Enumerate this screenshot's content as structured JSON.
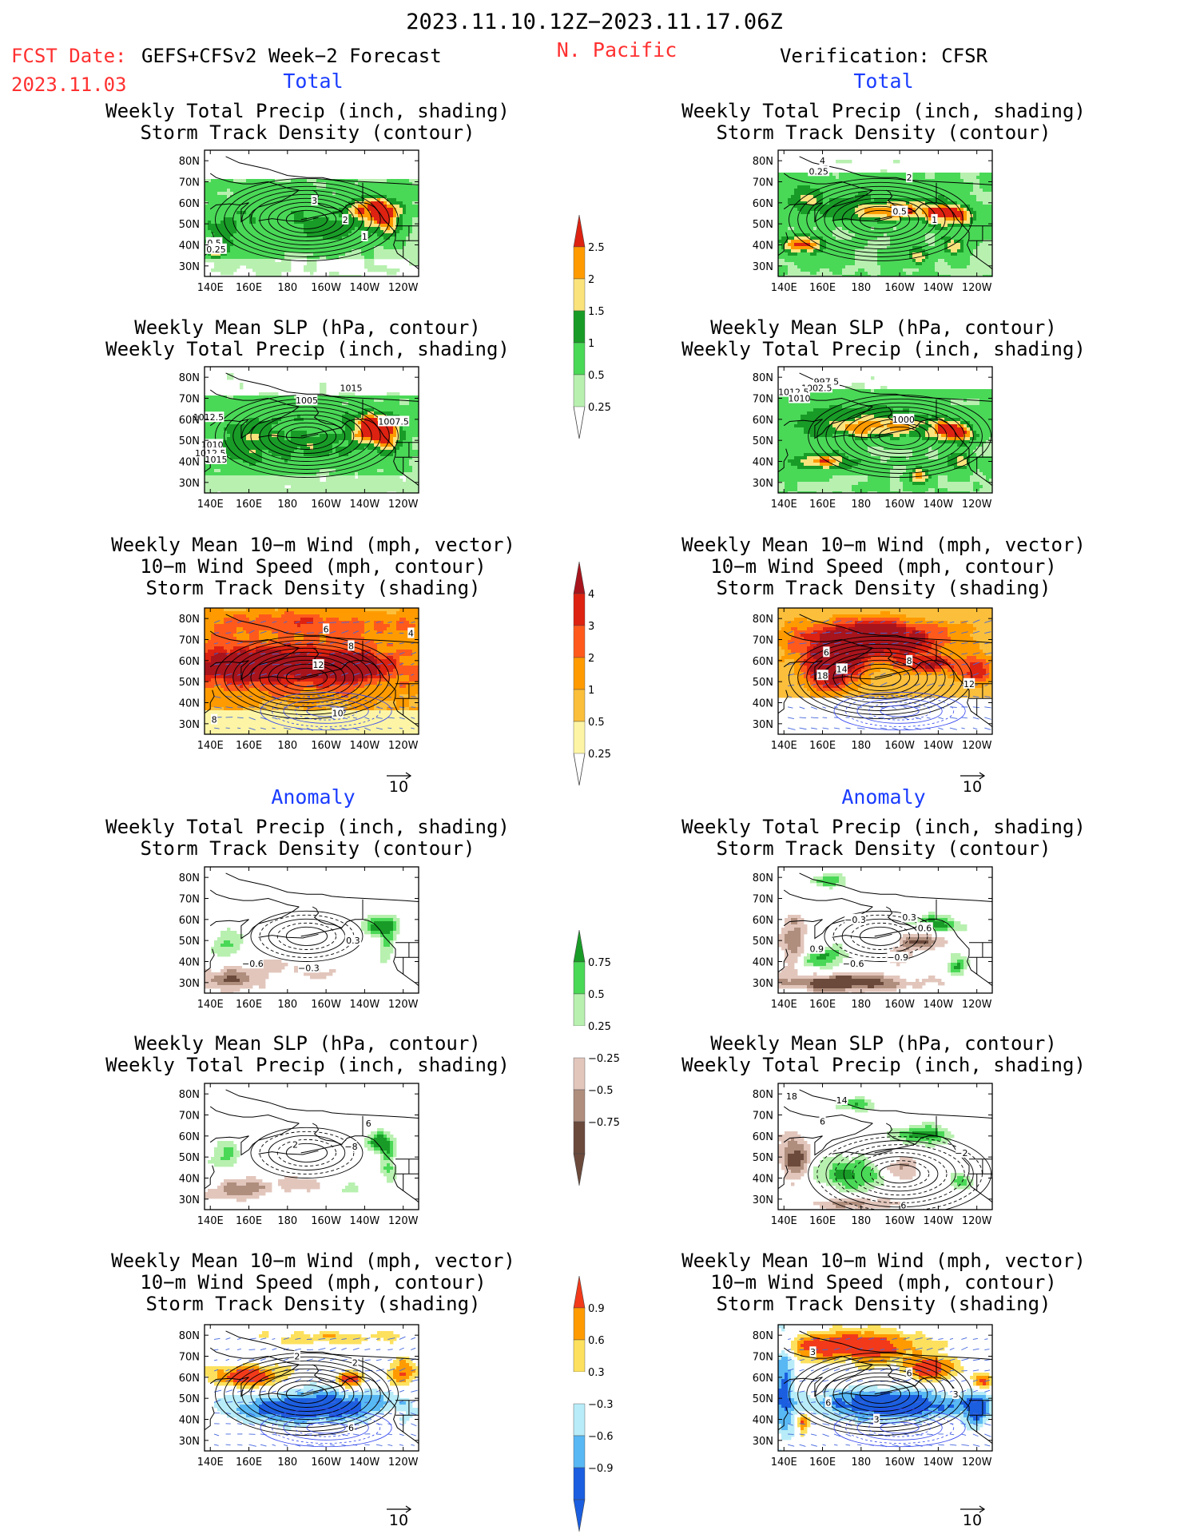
{
  "header": {
    "period": "2023.11.10.12Z−2023.11.17.06Z",
    "region": "N. Pacific",
    "fcst_label": "FCST Date:",
    "fcst_source": "GEFS+CFSv2 Week−2 Forecast",
    "fcst_date": "2023.11.03",
    "verification": "Verification: CFSR"
  },
  "sections": {
    "total": "Total",
    "anomaly": "Anomaly"
  },
  "axes": {
    "lat_labels": [
      "80N",
      "70N",
      "60N",
      "50N",
      "40N",
      "30N"
    ],
    "lat_values": [
      80,
      70,
      60,
      50,
      40,
      30
    ],
    "lon_labels": [
      "140E",
      "160E",
      "180",
      "160W",
      "140W",
      "120W"
    ],
    "lon_values": [
      140,
      160,
      180,
      200,
      220,
      240
    ],
    "lat_range": [
      25,
      85
    ],
    "lon_range": [
      137,
      248
    ]
  },
  "vector_ref": "10",
  "colorbars": [
    {
      "id": "precip-total",
      "labels": [
        "2.5",
        "2",
        "1.5",
        "1",
        "0.5",
        "0.25"
      ],
      "colors": [
        "#dd2211",
        "#ff9b00",
        "#fbe37c",
        "#199c27",
        "#4ad857",
        "#b8f0b0"
      ]
    },
    {
      "id": "storm-total",
      "labels": [
        "4",
        "3",
        "2",
        "1",
        "0.5",
        "0.25"
      ],
      "colors": [
        "#a8141c",
        "#dd2211",
        "#ff5a1c",
        "#ff9b00",
        "#fbbf3c",
        "#fdf5a5"
      ]
    },
    {
      "id": "precip-anom",
      "labels": [
        "0.75",
        "0.5",
        "0.25",
        "−0.25",
        "−0.5",
        "−0.75"
      ],
      "colors": [
        "#199c27",
        "#4ad857",
        "#b8f0b0",
        "#ffffff",
        "#e2c6bc",
        "#b08e7e",
        "#6b4a3c"
      ]
    },
    {
      "id": "storm-anom",
      "labels": [
        "0.9",
        "0.6",
        "0.3",
        "−0.3",
        "−0.6",
        "−0.9"
      ],
      "colors": [
        "#f23a1a",
        "#ff9b00",
        "#fde15e",
        "#ffffff",
        "#b8ecf8",
        "#58b8f4",
        "#1b5ee0"
      ]
    }
  ],
  "chart_data": [
    {
      "type": "heatmap",
      "id": "p1",
      "section": "Total",
      "column": "GEFS+CFSv2 Week-2 Forecast",
      "title": [
        "Weekly Total Precip (inch, shading)",
        "Storm Track Density (contour)"
      ],
      "contour_labels": [
        {
          "text": "3",
          "lon": 194,
          "lat": 61
        },
        {
          "text": "2",
          "lon": 210,
          "lat": 52
        },
        {
          "text": "1",
          "lon": 220,
          "lat": 44
        },
        {
          "text": "0.5",
          "lon": 142,
          "lat": 41
        },
        {
          "text": "0.25",
          "lon": 143,
          "lat": 38
        }
      ]
    },
    {
      "type": "heatmap",
      "id": "p2",
      "section": "Total",
      "column": "GEFS+CFSv2 Week-2 Forecast",
      "title": [
        "Weekly Mean SLP (hPa, contour)",
        "Weekly Total Precip (inch, shading)"
      ],
      "contour_labels": [
        {
          "text": "1015",
          "lon": 213,
          "lat": 75
        },
        {
          "text": "1005",
          "lon": 190,
          "lat": 69
        },
        {
          "text": "1007.5",
          "lon": 235,
          "lat": 59
        },
        {
          "text": "1012.5",
          "lon": 139,
          "lat": 61
        },
        {
          "text": "1010",
          "lon": 141,
          "lat": 48
        },
        {
          "text": "1012.5",
          "lon": 140,
          "lat": 44
        },
        {
          "text": "1015",
          "lon": 143,
          "lat": 41
        }
      ]
    },
    {
      "type": "heatmap",
      "id": "p3",
      "section": "Total",
      "column": "GEFS+CFSv2 Week-2 Forecast",
      "title": [
        "Weekly Mean 10−m Wind (mph, vector)",
        "10−m Wind Speed (mph, contour)",
        "Storm Track Density (shading)"
      ],
      "contour_labels": [
        {
          "text": "6",
          "lon": 200,
          "lat": 75
        },
        {
          "text": "8",
          "lon": 213,
          "lat": 67
        },
        {
          "text": "4",
          "lon": 244,
          "lat": 73
        },
        {
          "text": "12",
          "lon": 196,
          "lat": 58
        },
        {
          "text": "10",
          "lon": 206,
          "lat": 35
        },
        {
          "text": "8",
          "lon": 142,
          "lat": 32
        }
      ]
    },
    {
      "type": "heatmap",
      "id": "p4",
      "section": "Anomaly",
      "column": "GEFS+CFSv2 Week-2 Forecast",
      "title": [
        "Weekly Total Precip (inch, shading)",
        "Storm Track Density (contour)"
      ],
      "contour_labels": [
        {
          "text": "0.3",
          "lon": 214,
          "lat": 50
        },
        {
          "text": "−0.6",
          "lon": 162,
          "lat": 39
        },
        {
          "text": "−0.3",
          "lon": 191,
          "lat": 37
        }
      ]
    },
    {
      "type": "heatmap",
      "id": "p5",
      "section": "Anomaly",
      "column": "GEFS+CFSv2 Week-2 Forecast",
      "title": [
        "Weekly Mean SLP (hPa, contour)",
        "Weekly Total Precip (inch, shading)"
      ],
      "contour_labels": [
        {
          "text": "6",
          "lon": 222,
          "lat": 66
        },
        {
          "text": "−8",
          "lon": 213,
          "lat": 55
        },
        {
          "text": "2",
          "lon": 184,
          "lat": 56
        }
      ]
    },
    {
      "type": "heatmap",
      "id": "p6",
      "section": "Anomaly",
      "column": "GEFS+CFSv2 Week-2 Forecast",
      "title": [
        "Weekly Mean 10−m Wind (mph, vector)",
        "10−m Wind Speed (mph, contour)",
        "Storm Track Density (shading)"
      ],
      "contour_labels": [
        {
          "text": "2",
          "lon": 185,
          "lat": 70
        },
        {
          "text": "2",
          "lon": 215,
          "lat": 67
        },
        {
          "text": "6",
          "lon": 213,
          "lat": 36
        }
      ]
    },
    {
      "type": "heatmap",
      "id": "p7",
      "section": "Total",
      "column": "Verification: CFSR",
      "title": [
        "Weekly Total Precip (inch, shading)",
        "Storm Track Density (contour)"
      ],
      "contour_labels": [
        {
          "text": "4",
          "lon": 160,
          "lat": 80
        },
        {
          "text": "0.25",
          "lon": 158,
          "lat": 75
        },
        {
          "text": "2",
          "lon": 205,
          "lat": 72
        },
        {
          "text": "0.5",
          "lon": 200,
          "lat": 56
        },
        {
          "text": "1",
          "lon": 218,
          "lat": 52
        }
      ]
    },
    {
      "type": "heatmap",
      "id": "p8",
      "section": "Total",
      "column": "Verification: CFSR",
      "title": [
        "Weekly Mean SLP (hPa, contour)",
        "Weekly Total Precip (inch, shading)"
      ],
      "contour_labels": [
        {
          "text": "997.5",
          "lon": 162,
          "lat": 78
        },
        {
          "text": "1002.5",
          "lon": 157,
          "lat": 75
        },
        {
          "text": "1012.5",
          "lon": 145,
          "lat": 73
        },
        {
          "text": "1010",
          "lon": 148,
          "lat": 70
        },
        {
          "text": "1000",
          "lon": 202,
          "lat": 60
        }
      ]
    },
    {
      "type": "heatmap",
      "id": "p9",
      "section": "Total",
      "column": "Verification: CFSR",
      "title": [
        "Weekly Mean 10−m Wind (mph, vector)",
        "10−m Wind Speed (mph, contour)",
        "Storm Track Density (shading)"
      ],
      "contour_labels": [
        {
          "text": "6",
          "lon": 162,
          "lat": 64
        },
        {
          "text": "14",
          "lon": 170,
          "lat": 56
        },
        {
          "text": "18",
          "lon": 160,
          "lat": 53
        },
        {
          "text": "8",
          "lon": 205,
          "lat": 60
        },
        {
          "text": "12",
          "lon": 236,
          "lat": 49
        }
      ]
    },
    {
      "type": "heatmap",
      "id": "p10",
      "section": "Anomaly",
      "column": "Verification: CFSR",
      "title": [
        "Weekly Total Precip (inch, shading)",
        "Storm Track Density (contour)"
      ],
      "contour_labels": [
        {
          "text": "−0.3",
          "lon": 177,
          "lat": 60
        },
        {
          "text": "0.3",
          "lon": 205,
          "lat": 61
        },
        {
          "text": "0.6",
          "lon": 213,
          "lat": 56
        },
        {
          "text": "0.9",
          "lon": 157,
          "lat": 46
        },
        {
          "text": "−0.6",
          "lon": 176,
          "lat": 39
        },
        {
          "text": "−0.9",
          "lon": 199,
          "lat": 42
        }
      ]
    },
    {
      "type": "heatmap",
      "id": "p11",
      "section": "Anomaly",
      "column": "Verification: CFSR",
      "title": [
        "Weekly Mean SLP (hPa, contour)",
        "Weekly Total Precip (inch, shading)"
      ],
      "contour_labels": [
        {
          "text": "18",
          "lon": 144,
          "lat": 79
        },
        {
          "text": "14",
          "lon": 170,
          "lat": 77
        },
        {
          "text": "6",
          "lon": 160,
          "lat": 67
        },
        {
          "text": "−2",
          "lon": 232,
          "lat": 52
        },
        {
          "text": "6",
          "lon": 202,
          "lat": 27
        }
      ]
    },
    {
      "type": "heatmap",
      "id": "p12",
      "section": "Anomaly",
      "column": "Verification: CFSR",
      "title": [
        "Weekly Mean 10−m Wind (mph, vector)",
        "10−m Wind Speed (mph, contour)",
        "Storm Track Density (shading)"
      ],
      "contour_labels": [
        {
          "text": "3",
          "lon": 155,
          "lat": 72
        },
        {
          "text": "6",
          "lon": 205,
          "lat": 62
        },
        {
          "text": "6",
          "lon": 163,
          "lat": 48
        },
        {
          "text": "3",
          "lon": 188,
          "lat": 40
        },
        {
          "text": "3",
          "lon": 229,
          "lat": 52
        }
      ]
    }
  ]
}
